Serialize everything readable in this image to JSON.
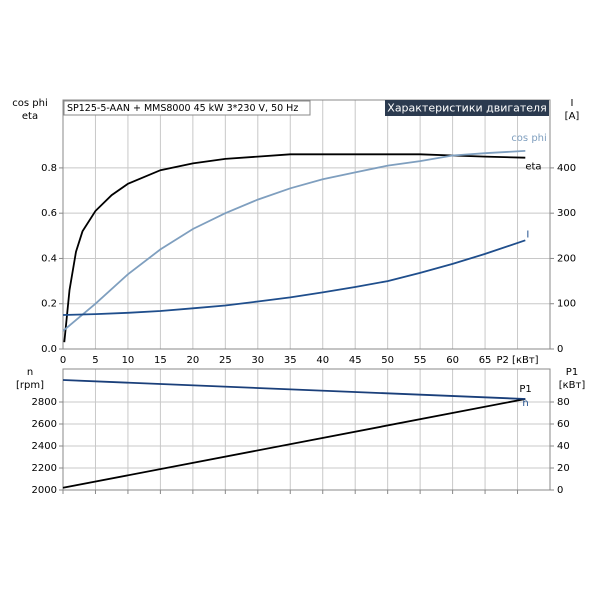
{
  "chart_data": [
    {
      "type": "line",
      "annotation": "SP125-5-AAN + MMS8000  45 kW  3*230 V, 50 Hz",
      "title": "Характеристики двигателя",
      "ylabel": [
        "cos phi",
        "eta"
      ],
      "y2label": [
        "I",
        "[A]"
      ],
      "xlim": [
        0,
        75
      ],
      "xticks": [
        0,
        5,
        10,
        15,
        20,
        25,
        30,
        35,
        40,
        45,
        50,
        55,
        60,
        65,
        {
          "value": 70,
          "label": "P2 [кВт]"
        }
      ],
      "ylim": [
        0,
        1.1
      ],
      "yticks": [
        {
          "value": 0,
          "label": "0.0"
        },
        0.2,
        0.4,
        0.6,
        0.8
      ],
      "y2lim": [
        0,
        550
      ],
      "y2ticks": [
        0,
        100,
        200,
        300,
        400
      ],
      "grid": true,
      "series": [
        {
          "name": "eta",
          "color": "#000000",
          "x": [
            0.2,
            1,
            2,
            3,
            5,
            7.5,
            10,
            15,
            20,
            25,
            30,
            35,
            40,
            45,
            50,
            55,
            60,
            65,
            71.2
          ],
          "values": [
            0.03,
            0.26,
            0.43,
            0.52,
            0.61,
            0.68,
            0.73,
            0.79,
            0.82,
            0.84,
            0.85,
            0.86,
            0.86,
            0.86,
            0.86,
            0.86,
            0.855,
            0.85,
            0.845
          ]
        },
        {
          "name": "cos phi",
          "color": "#7f9fbf",
          "x": [
            0,
            5,
            10,
            15,
            20,
            25,
            30,
            35,
            40,
            45,
            50,
            55,
            60,
            65,
            71.2
          ],
          "values": [
            0.08,
            0.2,
            0.33,
            0.44,
            0.53,
            0.6,
            0.66,
            0.71,
            0.75,
            0.78,
            0.81,
            0.83,
            0.855,
            0.865,
            0.875
          ]
        },
        {
          "name": "I",
          "color": "#1f4e8c",
          "axis": "y2",
          "x": [
            0,
            5,
            10,
            15,
            20,
            25,
            30,
            35,
            40,
            45,
            50,
            55,
            60,
            65,
            71.2
          ],
          "values": [
            75,
            77,
            80,
            84,
            90,
            96,
            105,
            114,
            125,
            137,
            150,
            168,
            188,
            210,
            240
          ]
        }
      ]
    },
    {
      "type": "line",
      "ylabel": [
        "n",
        "[rpm]"
      ],
      "y2label": [
        "P1",
        "[кВт]"
      ],
      "ylim": [
        2000,
        3100
      ],
      "yticks": [
        2000,
        2200,
        2400,
        2600,
        2800
      ],
      "y2lim": [
        0,
        110
      ],
      "y2ticks": [
        0,
        20,
        40,
        60,
        80
      ],
      "grid": true,
      "series": [
        {
          "name": "P1",
          "color": "#000000",
          "axis": "y2",
          "x": [
            0,
            71.2
          ],
          "values": [
            2,
            82.7
          ]
        },
        {
          "name": "n",
          "color": "#1a3f7a",
          "x": [
            0,
            71.2
          ],
          "values": [
            3000,
            2827
          ]
        }
      ]
    }
  ]
}
